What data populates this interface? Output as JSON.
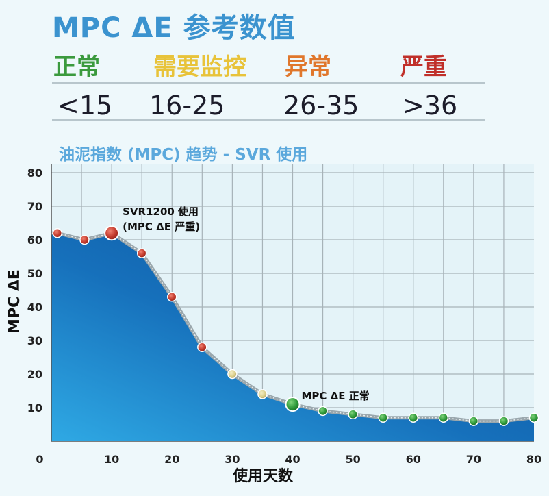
{
  "header": {
    "title": "MPC ΔE 参考数值",
    "levels": [
      {
        "label": "正常",
        "range": "<15",
        "color": "#3b9a3e"
      },
      {
        "label": "需要监控",
        "range": "16-25",
        "color": "#e8c33a"
      },
      {
        "label": "异常",
        "range": "26-35",
        "color": "#e0772c"
      },
      {
        "label": "严重",
        "range": ">36",
        "color": "#c0302a"
      }
    ]
  },
  "chart_data": {
    "type": "area",
    "title": "油泥指数 (MPC) 趋势 - SVR 使用",
    "xlabel": "使用天数",
    "ylabel": "MPC ΔE",
    "xlim": [
      0,
      80
    ],
    "ylim": [
      0,
      80
    ],
    "xticks": [
      0,
      10,
      20,
      30,
      40,
      50,
      60,
      70,
      80
    ],
    "yticks": [
      10,
      20,
      30,
      40,
      50,
      60,
      70,
      80
    ],
    "grid": true,
    "series": [
      {
        "points": [
          {
            "x": 1,
            "y": 62
          },
          {
            "x": 5.5,
            "y": 60
          },
          {
            "x": 10,
            "y": 62
          },
          {
            "x": 15,
            "y": 56
          },
          {
            "x": 20,
            "y": 43
          },
          {
            "x": 25,
            "y": 28
          },
          {
            "x": 30,
            "y": 20
          },
          {
            "x": 35,
            "y": 14
          },
          {
            "x": 40,
            "y": 11
          },
          {
            "x": 45,
            "y": 9
          },
          {
            "x": 50,
            "y": 8
          },
          {
            "x": 55,
            "y": 7
          },
          {
            "x": 60,
            "y": 7
          },
          {
            "x": 65,
            "y": 7
          },
          {
            "x": 70,
            "y": 6
          },
          {
            "x": 75,
            "y": 6
          },
          {
            "x": 80,
            "y": 7
          }
        ]
      }
    ],
    "annotations": [
      {
        "x": 10,
        "y": 62,
        "lines": [
          "SVR1200 使用",
          "(MPC ΔE 严重)"
        ]
      },
      {
        "x": 40,
        "y": 11,
        "lines": [
          "MPC ΔE 正常"
        ]
      }
    ]
  }
}
